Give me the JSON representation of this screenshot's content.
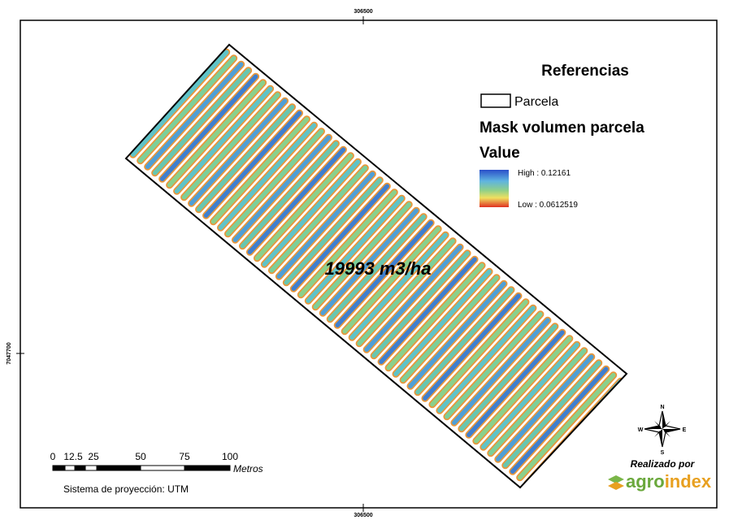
{
  "map": {
    "top_coordinate": "306500",
    "bottom_coordinate": "306500",
    "left_coordinate": "7047700",
    "label": "19993 m3/ha"
  },
  "legend": {
    "title": "Referencias",
    "parcel_label": "Parcela",
    "layer_name": "Mask volumen parcela",
    "value_title": "Value",
    "high_label": "High : 0.12161",
    "low_label": "Low : 0.0612519"
  },
  "scale_bar": {
    "labels": [
      "0",
      "12.5",
      "25",
      "50",
      "75",
      "100"
    ],
    "unit": "Metros"
  },
  "projection": "Sistema de proyección: UTM",
  "compass": {
    "north": "N",
    "south": "S",
    "east": "E",
    "west": "W"
  },
  "credit": {
    "caption": "Realizado por",
    "brand_start": "agro",
    "brand_end": "index"
  }
}
